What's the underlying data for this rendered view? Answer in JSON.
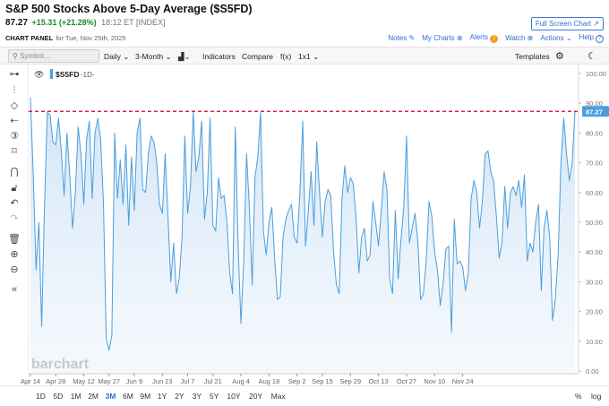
{
  "header": {
    "title": "S&P 500 Stocks Above 5-Day Average ($S5FD)",
    "price": "87.27",
    "change": "+15.31 (+21.28%)",
    "time": "18:12 ET [INDEX]",
    "fullscreen_label": "Full Screen Chart ↗",
    "panel_label": "CHART PANEL",
    "panel_date": "for Tue, Nov 25th, 2025"
  },
  "links": {
    "notes": "Notes",
    "mycharts": "My Charts",
    "alerts": "Alerts",
    "watch": "Watch",
    "actions": "Actions",
    "help": "Help"
  },
  "toolbar": {
    "symbol_placeholder": "Symbol...",
    "interval": "Daily ⌄",
    "period": "3-Month ⌄",
    "chart_type": "▟⌄",
    "indicators": "Indicators",
    "compare": "Compare",
    "fx": "f(x)",
    "layout": "1x1 ⌄",
    "templates": "Templates"
  },
  "legend": {
    "symbol": "$S5FD",
    "interval": "-1D-"
  },
  "watermark": "barchart",
  "ranges": [
    "1D",
    "5D",
    "1M",
    "2M",
    "3M",
    "6M",
    "9M",
    "1Y",
    "2Y",
    "3Y",
    "5Y",
    "10Y",
    "20Y",
    "Max"
  ],
  "active_range": "3M",
  "scale_options": {
    "percent": "%",
    "log": "log"
  },
  "colors": {
    "line": "#4a9edb",
    "area": "#dcebf9",
    "reference": "#d0021b",
    "active": "#2f6fc9"
  },
  "chart_data": {
    "type": "area",
    "title": "S&P 500 Stocks Above 5-Day Average ($S5FD)",
    "ylim": [
      0,
      100
    ],
    "yticks": [
      0,
      10,
      20,
      30,
      40,
      50,
      60,
      70,
      80,
      90,
      100
    ],
    "ytick_labels": [
      "0.00",
      "10.00",
      "20.00",
      "30.00",
      "40.00",
      "50.00",
      "60.00",
      "70.00",
      "80.00",
      "90.00",
      "100.00"
    ],
    "last_value": 87.27,
    "last_value_label": "87.27",
    "reference_line": 87.27,
    "xticks": [
      {
        "label": "Apr 14",
        "i": 0
      },
      {
        "label": "Apr 28",
        "i": 9
      },
      {
        "label": "May 12",
        "i": 19
      },
      {
        "label": "May 27",
        "i": 28
      },
      {
        "label": "Jun 9",
        "i": 37
      },
      {
        "label": "Jun 23",
        "i": 47
      },
      {
        "label": "Jul 7",
        "i": 56
      },
      {
        "label": "Jul 21",
        "i": 65
      },
      {
        "label": "Aug 4",
        "i": 75
      },
      {
        "label": "Aug 18",
        "i": 85
      },
      {
        "label": "Sep 2",
        "i": 95
      },
      {
        "label": "Sep 15",
        "i": 104
      },
      {
        "label": "Sep 29",
        "i": 114
      },
      {
        "label": "Oct 13",
        "i": 124
      },
      {
        "label": "Oct 27",
        "i": 134
      },
      {
        "label": "Nov 10",
        "i": 144
      },
      {
        "label": "Nov 24",
        "i": 154
      }
    ],
    "values": [
      92,
      66,
      34,
      50,
      15,
      55,
      87,
      86,
      77,
      76,
      85,
      74,
      59,
      80,
      66,
      48,
      60,
      82,
      73,
      56,
      78,
      84,
      58,
      80,
      85,
      78,
      57,
      11,
      7,
      12,
      80,
      58,
      71,
      56,
      76,
      49,
      72,
      54,
      80,
      85,
      61,
      60,
      73,
      79,
      77,
      70,
      56,
      53,
      73,
      52,
      30,
      43,
      26,
      31,
      45,
      79,
      53,
      62,
      87,
      67,
      72,
      84,
      51,
      60,
      85,
      49,
      47,
      65,
      58,
      59,
      50,
      33,
      26,
      82,
      42,
      16,
      37,
      73,
      55,
      29,
      65,
      72,
      87,
      47,
      39,
      50,
      55,
      38,
      24,
      25,
      45,
      51,
      54,
      56,
      45,
      43,
      60,
      84,
      42,
      54,
      67,
      49,
      77,
      60,
      45,
      57,
      61,
      59,
      40,
      29,
      26,
      58,
      69,
      60,
      65,
      63,
      52,
      33,
      45,
      48,
      37,
      39,
      57,
      50,
      42,
      54,
      67,
      61,
      31,
      26,
      54,
      31,
      44,
      55,
      79,
      43,
      48,
      53,
      44,
      24,
      26,
      37,
      57,
      52,
      40,
      34,
      22,
      29,
      41,
      42,
      13,
      51,
      36,
      37,
      35,
      27,
      33,
      58,
      64,
      60,
      48,
      57,
      73,
      74,
      67,
      64,
      52,
      38,
      43,
      62,
      48,
      60,
      62,
      59,
      64,
      55,
      66,
      37,
      43,
      40,
      50,
      56,
      27,
      48,
      54,
      45,
      17,
      24,
      39,
      70,
      85,
      73,
      64,
      70,
      87.27
    ]
  }
}
